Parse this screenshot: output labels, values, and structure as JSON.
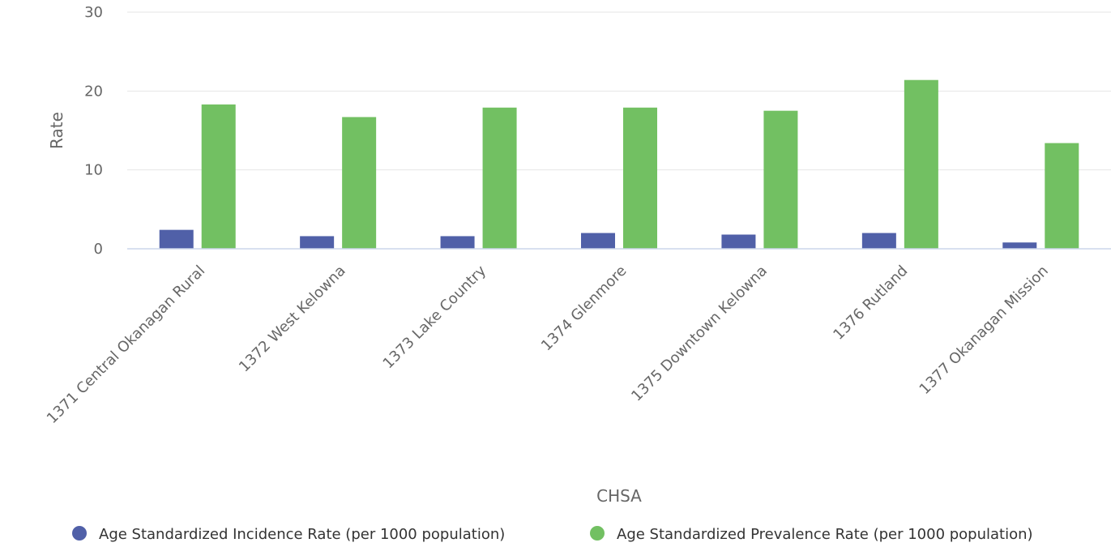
{
  "chart_data": {
    "type": "bar",
    "title": "",
    "xlabel": "CHSA",
    "ylabel": "Rate",
    "ylim": [
      0,
      30
    ],
    "yticks": [
      0,
      10,
      20,
      30
    ],
    "grid": true,
    "legend_position": "bottom",
    "categories": [
      "1371 Central Okanagan Rural",
      "1372 West Kelowna",
      "1373 Lake Country",
      "1374 Glenmore",
      "1375 Downtown Kelowna",
      "1376 Rutland",
      "1377 Okanagan Mission"
    ],
    "series": [
      {
        "name": "Age Standardized Incidence Rate (per 1000 population)",
        "color": "#5060a8",
        "values": [
          2.4,
          1.6,
          1.6,
          2.0,
          1.8,
          2.0,
          0.8
        ]
      },
      {
        "name": "Age Standardized Prevalence Rate (per 1000 population)",
        "color": "#72c062",
        "values": [
          18.3,
          16.7,
          17.9,
          17.9,
          17.5,
          21.4,
          13.4
        ]
      }
    ]
  }
}
